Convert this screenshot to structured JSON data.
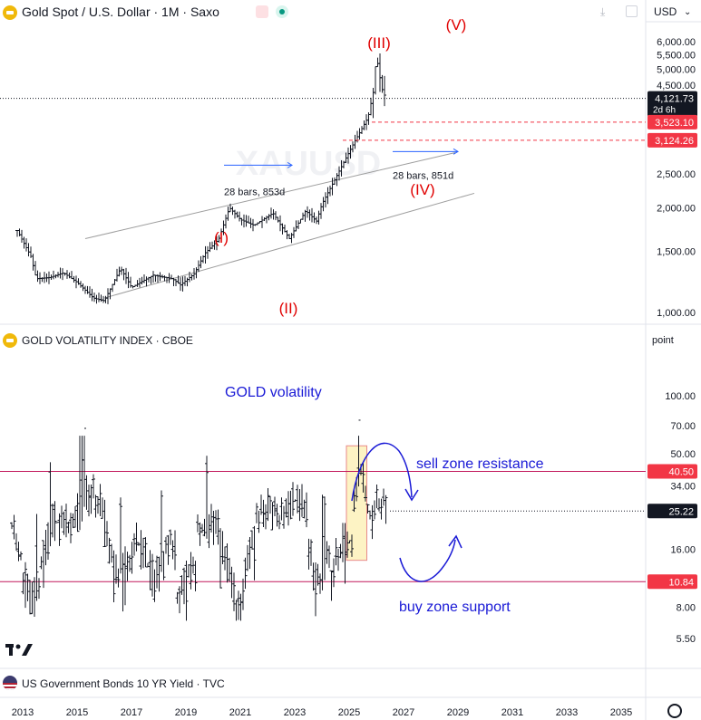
{
  "header": {
    "title": "Gold Spot / U.S. Dollar · 1M · Saxo",
    "currency": "USD"
  },
  "volatility_pane": {
    "title": "GOLD VOLATILITY INDEX · CBOE",
    "scale_mode": "point"
  },
  "bonds_pane": {
    "title": "US Government Bonds 10 YR Yield · TVC"
  },
  "x_axis": {
    "ticks": [
      "2013",
      "2015",
      "2017",
      "2019",
      "2021",
      "2023",
      "2025",
      "2027",
      "2029",
      "2031",
      "2033",
      "2035"
    ]
  },
  "colors": {
    "up": "#131722",
    "wave": "#e00000",
    "annotation_blue": "#1a1ad6",
    "measure": "#2962ff",
    "channel": "#9e9e9e",
    "last_price_bg": "#131722",
    "level_red": "#f23645"
  },
  "chart_data": [
    {
      "type": "ohlc",
      "title": "Gold Spot / U.S. Dollar · 1M · Saxo",
      "scale": "log",
      "ylim": [
        950,
        6500
      ],
      "y_ticks": [
        "6,000.00",
        "5,500.00",
        "5,000.00",
        "4,500.00",
        "4,000.00",
        "3,500.00",
        "3,000.00",
        "2,500.00",
        "2,000.00",
        "1,500.00",
        "1,000.00"
      ],
      "y_tick_values": [
        6000,
        5500,
        5000,
        4500,
        4000,
        3500,
        3000,
        2500,
        2000,
        1500,
        1000
      ],
      "price_path": [
        [
          2012.8,
          1720
        ],
        [
          2013.3,
          1450
        ],
        [
          2013.5,
          1250
        ],
        [
          2014.0,
          1260
        ],
        [
          2014.5,
          1300
        ],
        [
          2015.0,
          1220
        ],
        [
          2015.6,
          1100
        ],
        [
          2016.0,
          1080
        ],
        [
          2016.6,
          1340
        ],
        [
          2017.0,
          1180
        ],
        [
          2017.8,
          1280
        ],
        [
          2018.5,
          1250
        ],
        [
          2018.8,
          1200
        ],
        [
          2019.3,
          1290
        ],
        [
          2019.7,
          1480
        ],
        [
          2020.2,
          1620
        ],
        [
          2020.6,
          2000
        ],
        [
          2021.0,
          1850
        ],
        [
          2021.5,
          1780
        ],
        [
          2022.2,
          1930
        ],
        [
          2022.8,
          1630
        ],
        [
          2023.4,
          1960
        ],
        [
          2023.8,
          1830
        ],
        [
          2024.0,
          2050
        ],
        [
          2024.4,
          2350
        ],
        [
          2024.8,
          2700
        ],
        [
          2025.2,
          3100
        ],
        [
          2025.4,
          3300
        ],
        [
          2025.7,
          3650
        ],
        [
          2025.9,
          4350
        ],
        [
          2026.0,
          5500
        ],
        [
          2026.1,
          4900
        ],
        [
          2026.2,
          4400
        ],
        [
          2026.35,
          4121.73
        ]
      ],
      "last_price": "4,121.73",
      "last_price_countdown": "2d 6h",
      "levels": [
        {
          "label": "3,523.10",
          "value": 3523.1
        },
        {
          "label": "3,124.26",
          "value": 3124.26
        }
      ],
      "wave_labels": [
        {
          "text": "(I)",
          "x": 2020.6,
          "y": 2450
        },
        {
          "text": "(II)",
          "x": 2023.0,
          "y": 1150
        },
        {
          "text": "(III)",
          "x": 2026.0,
          "y": 6050
        },
        {
          "text": "(IV)",
          "x": 2026.7,
          "y": 3350
        },
        {
          "text": "(V)",
          "x": 2028.0,
          "y": 7300
        }
      ],
      "measures": [
        {
          "text": "28 bars, 853d",
          "x_start": 2020.4,
          "x_end": 2022.9,
          "y": 2650,
          "label_y": 2200
        },
        {
          "text": "28 bars, 851d",
          "x_start": 2026.6,
          "x_end": 2029.0,
          "y": 2900,
          "label_y": 2450
        }
      ],
      "channel": [
        {
          "from": [
            2016.0,
            1100
          ],
          "to": [
            2029.6,
            2200
          ]
        },
        {
          "from": [
            2015.3,
            1630
          ],
          "to": [
            2028.9,
            2880
          ]
        }
      ],
      "watermark": "XAUUSD"
    },
    {
      "type": "ohlc",
      "title": "GOLD VOLATILITY INDEX · CBOE",
      "scale": "log",
      "ylim": [
        4.5,
        180
      ],
      "y_ticks": [
        "100.00",
        "70.00",
        "50.00",
        "34.00",
        "25.22",
        "16.00",
        "8.00",
        "5.50"
      ],
      "y_tick_values": [
        100,
        70,
        50,
        34,
        25.22,
        16,
        8,
        5.5
      ],
      "last_value": "25.22",
      "annotation": "GOLD volatility",
      "zones": [
        {
          "label": "sell zone resistance",
          "value": 40.5,
          "badge": "40.50"
        },
        {
          "label": "buy zone support",
          "value": 10.84,
          "badge": "10.84"
        }
      ],
      "highlight_box": {
        "x_start": 2024.9,
        "x_end": 2025.65,
        "y_low": 14,
        "y_high": 55
      }
    }
  ]
}
